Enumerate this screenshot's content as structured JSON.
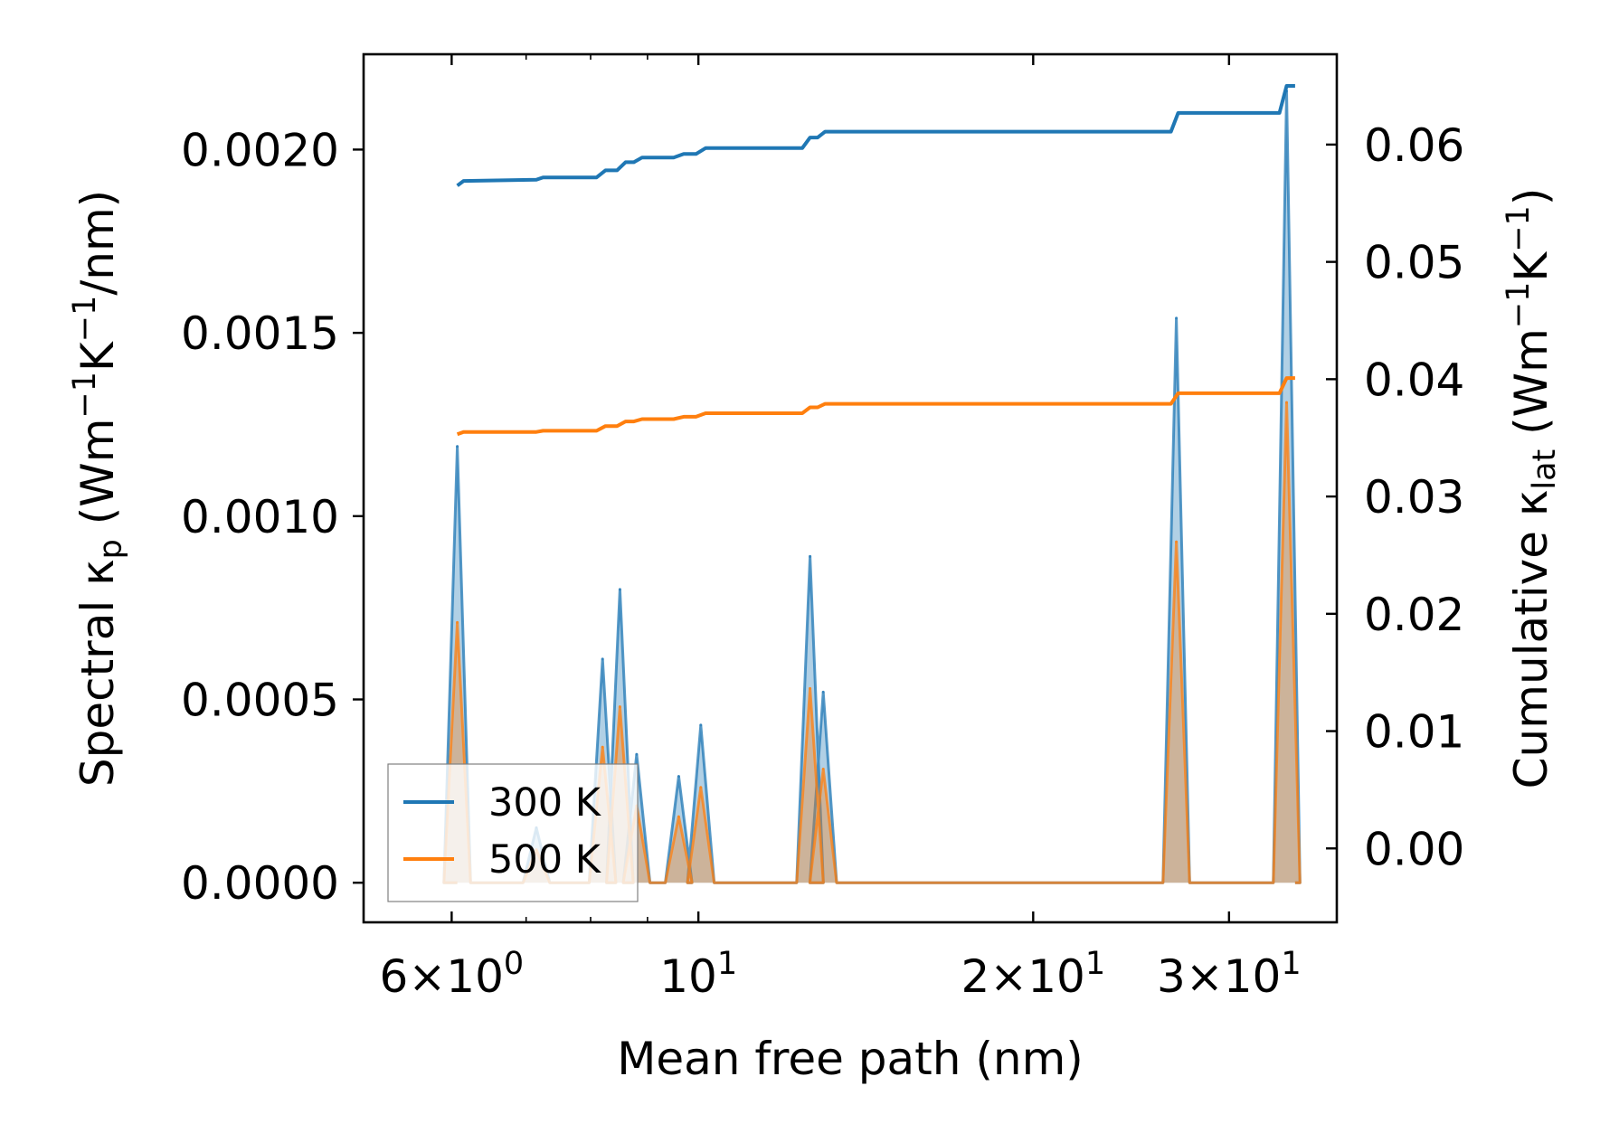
{
  "chart_data": {
    "type": "line",
    "xscale": "log",
    "xlabel": "Mean free path (nm)",
    "ylabel_left": {
      "main": "Spectral κ",
      "sub": "p",
      "unit_a": " (Wm",
      "sup1": "−1",
      "unit_b": "K",
      "sup2": "−1",
      "unit_c": "/nm)"
    },
    "ylabel_right": {
      "main": "Cumulative κ",
      "sub": "lat",
      "unit_a": " (Wm",
      "sup1": "−1",
      "unit_b": "K",
      "sup2": "−1",
      "unit_c": ")"
    },
    "xlim": [
      5.0,
      37.5
    ],
    "ylim_left": [
      -0.000108,
      0.00226
    ],
    "ylim_right": [
      -0.0063,
      0.0677
    ],
    "xticks": [
      {
        "value": 6,
        "base": "6×10",
        "exp": "0"
      },
      {
        "value": 10,
        "base": "10",
        "exp": "1"
      },
      {
        "value": 20,
        "base": "2×10",
        "exp": "1"
      },
      {
        "value": 30,
        "base": "3×10",
        "exp": "1"
      }
    ],
    "yticks_left": [
      {
        "value": 0.0,
        "label": "0.0000"
      },
      {
        "value": 0.0005,
        "label": "0.0005"
      },
      {
        "value": 0.001,
        "label": "0.0010"
      },
      {
        "value": 0.0015,
        "label": "0.0015"
      },
      {
        "value": 0.002,
        "label": "0.0020"
      }
    ],
    "yticks_right": [
      {
        "value": 0.0,
        "label": "0.00"
      },
      {
        "value": 0.01,
        "label": "0.01"
      },
      {
        "value": 0.02,
        "label": "0.02"
      },
      {
        "value": 0.03,
        "label": "0.03"
      },
      {
        "value": 0.04,
        "label": "0.04"
      },
      {
        "value": 0.05,
        "label": "0.05"
      },
      {
        "value": 0.06,
        "label": "0.06"
      }
    ],
    "legend": {
      "position": "lower-left",
      "entries": [
        "300 K",
        "500 K"
      ]
    },
    "series": [
      {
        "name": "300 K",
        "color": "#1f77b4",
        "spectral_peaks": [
          {
            "x": 6.07,
            "y": 0.00119
          },
          {
            "x": 7.15,
            "y": 0.00015
          },
          {
            "x": 8.2,
            "y": 0.00061
          },
          {
            "x": 8.5,
            "y": 0.0008
          },
          {
            "x": 8.8,
            "y": 0.00035
          },
          {
            "x": 9.6,
            "y": 0.00029
          },
          {
            "x": 10.05,
            "y": 0.00043
          },
          {
            "x": 12.6,
            "y": 0.00089
          },
          {
            "x": 12.95,
            "y": 0.00052
          },
          {
            "x": 26.9,
            "y": 0.00154
          },
          {
            "x": 33.8,
            "y": 0.00216
          }
        ],
        "cumulative": [
          {
            "x": 6.07,
            "y": 0.0565
          },
          {
            "x": 6.15,
            "y": 0.0569
          },
          {
            "x": 7.15,
            "y": 0.057
          },
          {
            "x": 7.25,
            "y": 0.0572
          },
          {
            "x": 8.1,
            "y": 0.0572
          },
          {
            "x": 8.25,
            "y": 0.0578
          },
          {
            "x": 8.45,
            "y": 0.0578
          },
          {
            "x": 8.6,
            "y": 0.0585
          },
          {
            "x": 8.75,
            "y": 0.0585
          },
          {
            "x": 8.9,
            "y": 0.0589
          },
          {
            "x": 9.5,
            "y": 0.0589
          },
          {
            "x": 9.7,
            "y": 0.0592
          },
          {
            "x": 9.95,
            "y": 0.0592
          },
          {
            "x": 10.15,
            "y": 0.0597
          },
          {
            "x": 12.4,
            "y": 0.0597
          },
          {
            "x": 12.6,
            "y": 0.0606
          },
          {
            "x": 12.8,
            "y": 0.0606
          },
          {
            "x": 13.0,
            "y": 0.0611
          },
          {
            "x": 26.6,
            "y": 0.0611
          },
          {
            "x": 27.0,
            "y": 0.0627
          },
          {
            "x": 33.3,
            "y": 0.0627
          },
          {
            "x": 33.8,
            "y": 0.065
          },
          {
            "x": 34.4,
            "y": 0.065
          }
        ]
      },
      {
        "name": "500 K",
        "color": "#ff7f0e",
        "spectral_peaks": [
          {
            "x": 6.07,
            "y": 0.00071
          },
          {
            "x": 7.15,
            "y": 9e-05
          },
          {
            "x": 8.2,
            "y": 0.00037
          },
          {
            "x": 8.5,
            "y": 0.00048
          },
          {
            "x": 8.8,
            "y": 0.00021
          },
          {
            "x": 9.6,
            "y": 0.00018
          },
          {
            "x": 10.05,
            "y": 0.00026
          },
          {
            "x": 12.6,
            "y": 0.00053
          },
          {
            "x": 12.95,
            "y": 0.00031
          },
          {
            "x": 26.9,
            "y": 0.00093
          },
          {
            "x": 33.8,
            "y": 0.00131
          }
        ],
        "cumulative": [
          {
            "x": 6.07,
            "y": 0.0353
          },
          {
            "x": 6.15,
            "y": 0.0355
          },
          {
            "x": 7.15,
            "y": 0.0355
          },
          {
            "x": 7.25,
            "y": 0.0356
          },
          {
            "x": 8.1,
            "y": 0.0356
          },
          {
            "x": 8.25,
            "y": 0.036
          },
          {
            "x": 8.45,
            "y": 0.036
          },
          {
            "x": 8.6,
            "y": 0.0364
          },
          {
            "x": 8.75,
            "y": 0.0364
          },
          {
            "x": 8.9,
            "y": 0.0366
          },
          {
            "x": 9.5,
            "y": 0.0366
          },
          {
            "x": 9.7,
            "y": 0.0368
          },
          {
            "x": 9.95,
            "y": 0.0368
          },
          {
            "x": 10.15,
            "y": 0.0371
          },
          {
            "x": 12.4,
            "y": 0.0371
          },
          {
            "x": 12.6,
            "y": 0.0376
          },
          {
            "x": 12.8,
            "y": 0.0376
          },
          {
            "x": 13.0,
            "y": 0.0379
          },
          {
            "x": 26.6,
            "y": 0.0379
          },
          {
            "x": 27.0,
            "y": 0.0388
          },
          {
            "x": 33.3,
            "y": 0.0388
          },
          {
            "x": 33.8,
            "y": 0.0401
          },
          {
            "x": 34.4,
            "y": 0.0401
          }
        ]
      }
    ]
  }
}
